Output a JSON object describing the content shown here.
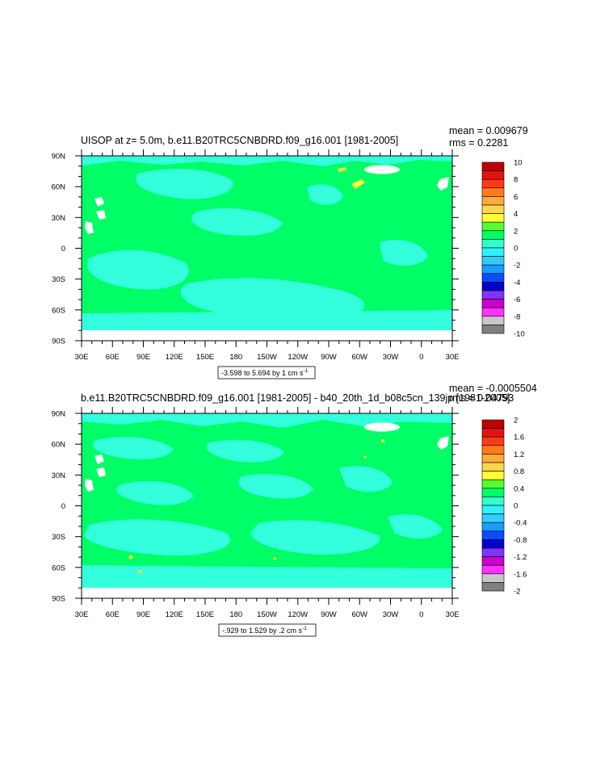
{
  "chart_data": [
    {
      "type": "heatmap",
      "title": "UISOP at z=   5.0m, b.e11.B20TRC5CNBDRD.f09_g16.001 [1981-2005]",
      "stats": [
        "mean = 0.009679",
        "rms = 0.2281"
      ],
      "x_tick_labels": [
        "30E",
        "60E",
        "90E",
        "120E",
        "150E",
        "180",
        "150W",
        "120W",
        "90W",
        "60W",
        "30W",
        "0",
        "30E"
      ],
      "y_tick_labels": [
        "90N",
        "60N",
        "30N",
        "0",
        "30S",
        "60S",
        "90S"
      ],
      "x_range": [
        30,
        390
      ],
      "y_range": [
        -90,
        90
      ],
      "colorbar_levels": [
        "10",
        "8",
        "6",
        "4",
        "2",
        "0",
        "-2",
        "-4",
        "-6",
        "-8",
        "-10"
      ],
      "colorbar_colors": [
        "#bf0000",
        "#e51212",
        "#ff3a1a",
        "#ff7b1a",
        "#ffaa3c",
        "#ffd84a",
        "#ffff33",
        "#55ff33",
        "#00ff66",
        "#33ffcc",
        "#33f0ff",
        "#33ccff",
        "#1a9cff",
        "#0a4dff",
        "#0000cc",
        "#7f33ff",
        "#cc00cc",
        "#ff33ff",
        "#c8c8c8",
        "#808080"
      ],
      "range_label": "-3.598 to 5.694 by 1 cm s",
      "range_sup": "-1"
    },
    {
      "type": "heatmap",
      "title": "b.e11.B20TRC5CNBDRD.f09_g16.001 [1981-2005] - b40_20th_1d_b08c5cn_139jp [1981-2005]",
      "stats": [
        "mean = -0.0005504",
        "rms = 0.04793"
      ],
      "x_tick_labels": [
        "30E",
        "60E",
        "90E",
        "120E",
        "150E",
        "180",
        "150W",
        "120W",
        "90W",
        "60W",
        "30W",
        "0",
        "30E"
      ],
      "y_tick_labels": [
        "90N",
        "60N",
        "30N",
        "0",
        "30S",
        "60S",
        "90S"
      ],
      "x_range": [
        30,
        390
      ],
      "y_range": [
        -90,
        90
      ],
      "colorbar_levels": [
        "2",
        "1.6",
        "1.2",
        "0.8",
        "0.4",
        "0",
        "-0.4",
        "-0.8",
        "-1.2",
        "-1.6",
        "-2"
      ],
      "colorbar_colors": [
        "#bf0000",
        "#e51212",
        "#ff3a1a",
        "#ff7b1a",
        "#ffaa3c",
        "#ffd84a",
        "#ffff33",
        "#55ff33",
        "#00ff66",
        "#33ffcc",
        "#33f0ff",
        "#33ccff",
        "#1a9cff",
        "#0a4dff",
        "#0000cc",
        "#7f33ff",
        "#cc00cc",
        "#ff33ff",
        "#c8c8c8",
        "#808080"
      ],
      "range_label": "-.929 to 1.529 by .2 cm s",
      "range_sup": "-1"
    }
  ],
  "colors": {
    "field_main": "#00ff66",
    "field_alt": "#33ffdd",
    "missing": "#ffffff"
  }
}
